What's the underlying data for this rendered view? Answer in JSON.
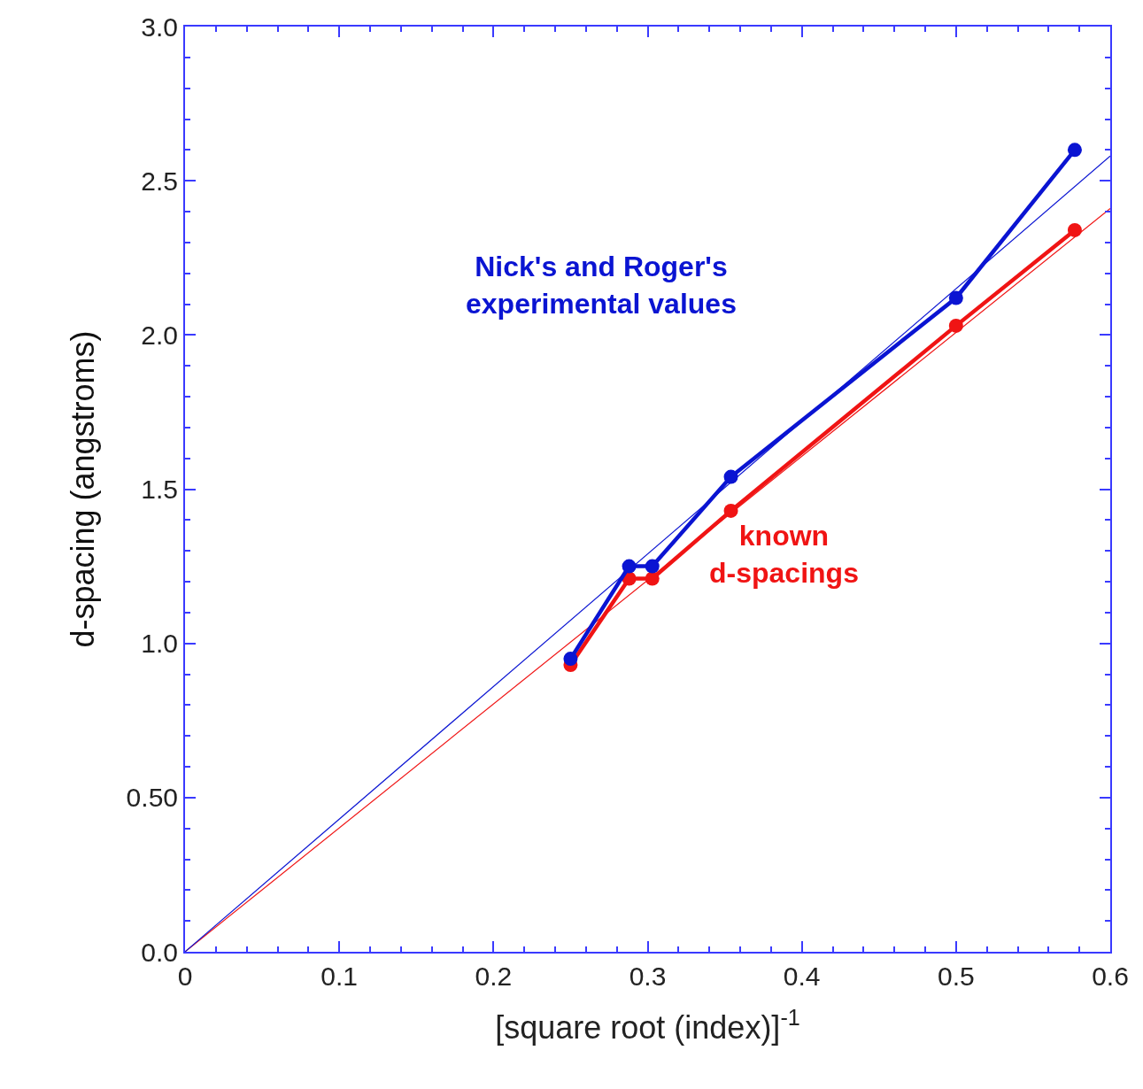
{
  "chart_data": {
    "type": "line",
    "xlabel": "[square root (index)]$^{-1}$",
    "ylabel": "d-spacing (angstroms)",
    "xlim": [
      0,
      0.6
    ],
    "ylim": [
      0,
      3.0
    ],
    "xticks": [
      0,
      0.1,
      0.2,
      0.3,
      0.4,
      0.5,
      0.6
    ],
    "yticks": [
      {
        "value": 0,
        "label": "0.0"
      },
      {
        "value": 0.5,
        "label": "0.50"
      },
      {
        "value": 1,
        "label": "1.0"
      },
      1.5,
      {
        "value": 2,
        "label": "2.0"
      },
      2.5,
      {
        "value": 3,
        "label": "3.0"
      }
    ],
    "marker": "circle",
    "line_style": "solid",
    "series": [
      {
        "color": "#0a14d2",
        "x": [
          0.25,
          0.288,
          0.303,
          0.354,
          0.5,
          0.577
        ],
        "values": [
          0.95,
          1.25,
          1.25,
          1.54,
          2.12,
          2.6
        ]
      },
      {
        "color": "#f01414",
        "x": [
          0.25,
          0.288,
          0.303,
          0.354,
          0.5,
          0.577
        ],
        "values": [
          0.93,
          1.21,
          1.21,
          1.43,
          2.03,
          2.34
        ]
      },
      {
        "type": "line",
        "marker": "none",
        "color": "#0a14d2",
        "x": [
          0,
          0.6
        ],
        "values": [
          0,
          2.58
        ]
      },
      {
        "type": "line",
        "marker": "none",
        "color": "#f01414",
        "x": [
          0,
          0.6
        ],
        "values": [
          0,
          2.41
        ]
      }
    ],
    "annotations": [
      "Nick's and Roger's\nexperimental values",
      "known\nd-spacings"
    ]
  }
}
